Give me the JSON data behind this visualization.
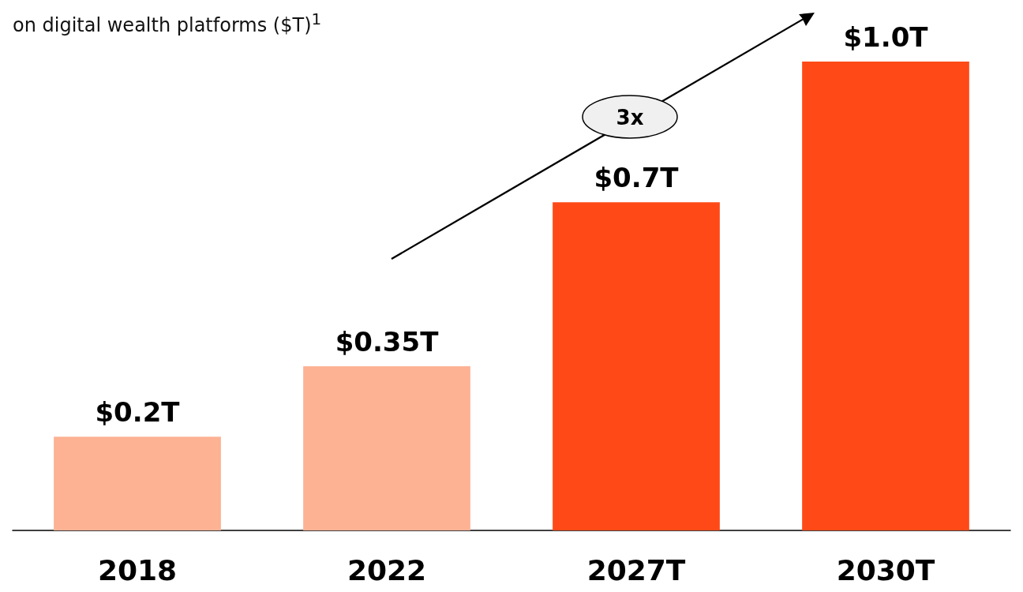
{
  "chart_data": {
    "type": "bar",
    "title": "on digital wealth platforms ($T)$^{1}$",
    "categories": [
      "2018",
      "2022",
      "2027T",
      "2030T"
    ],
    "values": [
      0.2,
      0.35,
      0.7,
      1.0
    ],
    "colors": [
      "#fdb294",
      "#fdb294",
      "#ff4a17",
      "#ff4a17"
    ],
    "value_labels": [
      "$0.2T",
      "$0.35T",
      "$0.7T",
      "$1.0T"
    ],
    "annotations": [
      "3x"
    ],
    "grid": false
  }
}
